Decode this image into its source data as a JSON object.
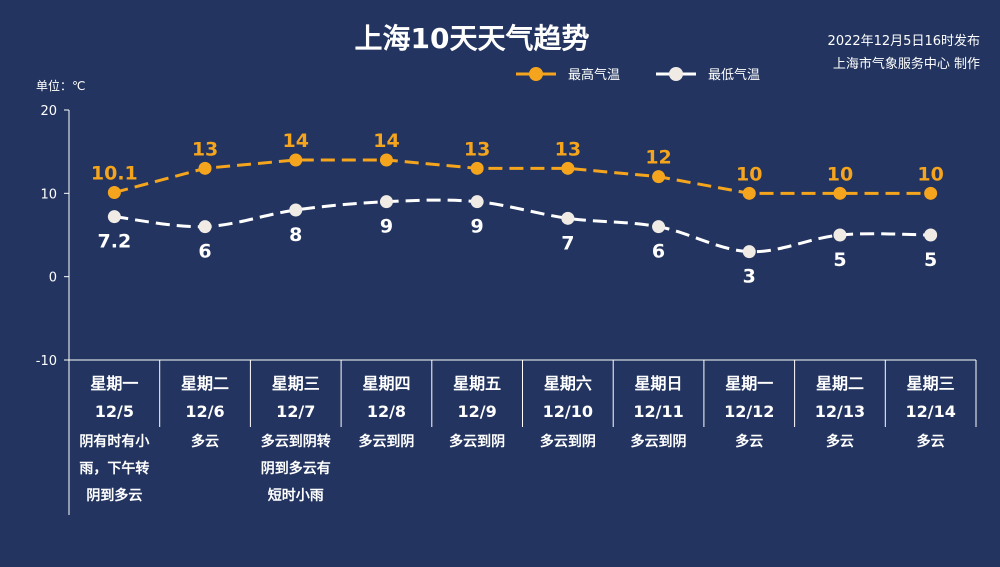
{
  "title": "上海10天天气趋势",
  "publish_time": "2022年12月5日16时发布",
  "publisher": "上海市气象服务中心 制作",
  "colors": {
    "background": "#22345f",
    "high": "#f5a51d",
    "low": "#ffffff",
    "axis": "#ffffff"
  },
  "chart_data": {
    "type": "line",
    "title": "上海10天天气趋势",
    "ylabel": "单位：℃",
    "ylim": [
      -10,
      20
    ],
    "yticks": [
      "-10",
      "0",
      "10",
      "20"
    ],
    "legend_position": "top-right",
    "grid": false,
    "days": [
      "星期一",
      "星期二",
      "星期三",
      "星期四",
      "星期五",
      "星期六",
      "星期日",
      "星期一",
      "星期二",
      "星期三"
    ],
    "categories": [
      "12/5",
      "12/6",
      "12/7",
      "12/8",
      "12/9",
      "12/10",
      "12/11",
      "12/12",
      "12/13",
      "12/14"
    ],
    "weather": [
      [
        "阴有时有小",
        "雨，下午转",
        "阴到多云"
      ],
      [
        "多云"
      ],
      [
        "多云到阴转",
        "阴到多云有",
        "短时小雨"
      ],
      [
        "多云到阴"
      ],
      [
        "多云到阴"
      ],
      [
        "多云到阴"
      ],
      [
        "多云到阴"
      ],
      [
        "多云"
      ],
      [
        "多云"
      ],
      [
        "多云"
      ]
    ],
    "series": [
      {
        "name": "最高气温",
        "values": [
          10.1,
          13,
          14,
          14,
          13,
          13,
          12,
          10,
          10,
          10
        ],
        "labels": [
          "10.1",
          "13",
          "14",
          "14",
          "13",
          "13",
          "12",
          "10",
          "10",
          "10"
        ]
      },
      {
        "name": "最低气温",
        "values": [
          7.2,
          6,
          8,
          9,
          9,
          7,
          6,
          3,
          5,
          5
        ],
        "labels": [
          "7.2",
          "6",
          "8",
          "9",
          "9",
          "7",
          "6",
          "3",
          "5",
          "5"
        ]
      }
    ]
  }
}
